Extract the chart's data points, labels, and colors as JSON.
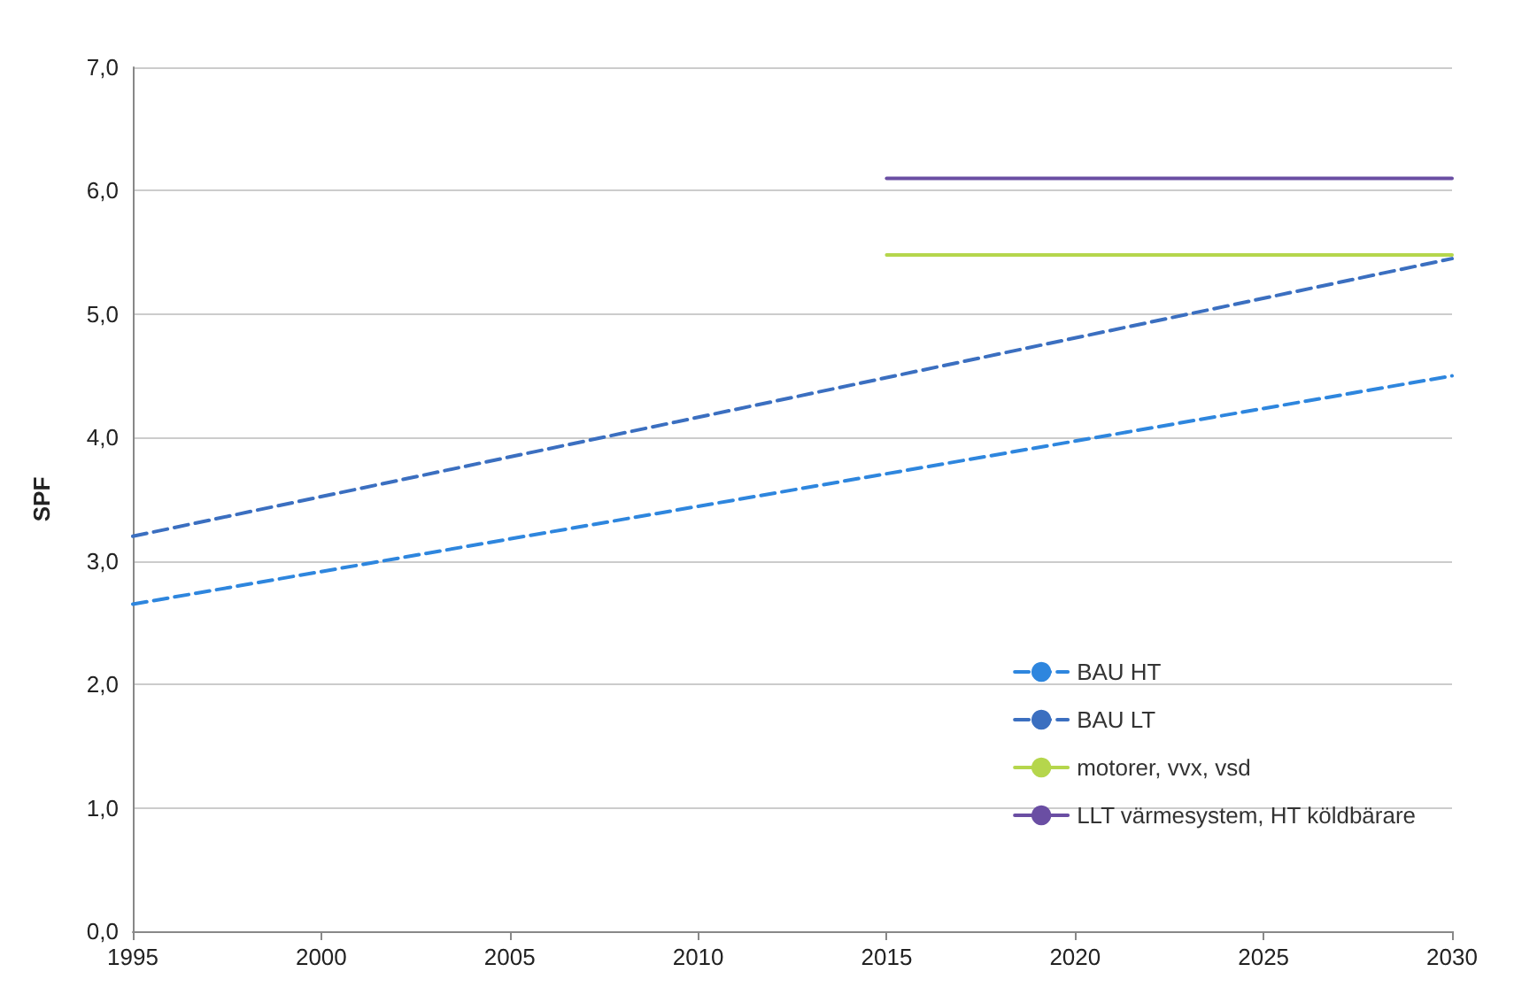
{
  "chart_data": {
    "type": "line",
    "ylabel": "SPF",
    "xlim": [
      1995,
      2030
    ],
    "xticks": [
      1995,
      2000,
      2005,
      2010,
      2015,
      2020,
      2025,
      2030
    ],
    "ylim": [
      0,
      7
    ],
    "yticks": [
      {
        "value": 0,
        "label": "0,0"
      },
      {
        "value": 1,
        "label": "1,0"
      },
      {
        "value": 2,
        "label": "2,0"
      },
      {
        "value": 3,
        "label": "3,0"
      },
      {
        "value": 4,
        "label": "4,0"
      },
      {
        "value": 5,
        "label": "5,0"
      },
      {
        "value": 6,
        "label": "6,0"
      },
      {
        "value": 7,
        "label": "7,0"
      }
    ],
    "grid": "y",
    "legend": "bottom right",
    "marker": "none",
    "series": [
      {
        "name": "BAU HT",
        "color": "#2e86de",
        "line_style": "dashed",
        "x": [
          1995,
          2030
        ],
        "values": [
          2.65,
          4.5
        ]
      },
      {
        "name": "BAU LT",
        "color": "#3b6fc0",
        "line_style": "dashed",
        "x": [
          1995,
          2030
        ],
        "values": [
          3.2,
          5.45
        ]
      },
      {
        "name": "motorer, vvx, vsd",
        "color": "#b5d64c",
        "line_style": "solid",
        "x": [
          2015,
          2030
        ],
        "values": [
          5.48,
          5.48
        ]
      },
      {
        "name": "LLT värmesystem, HT köldbärare",
        "color": "#6a4ea3",
        "line_style": "solid",
        "x": [
          2015,
          2030
        ],
        "values": [
          6.1,
          6.1
        ]
      }
    ]
  }
}
